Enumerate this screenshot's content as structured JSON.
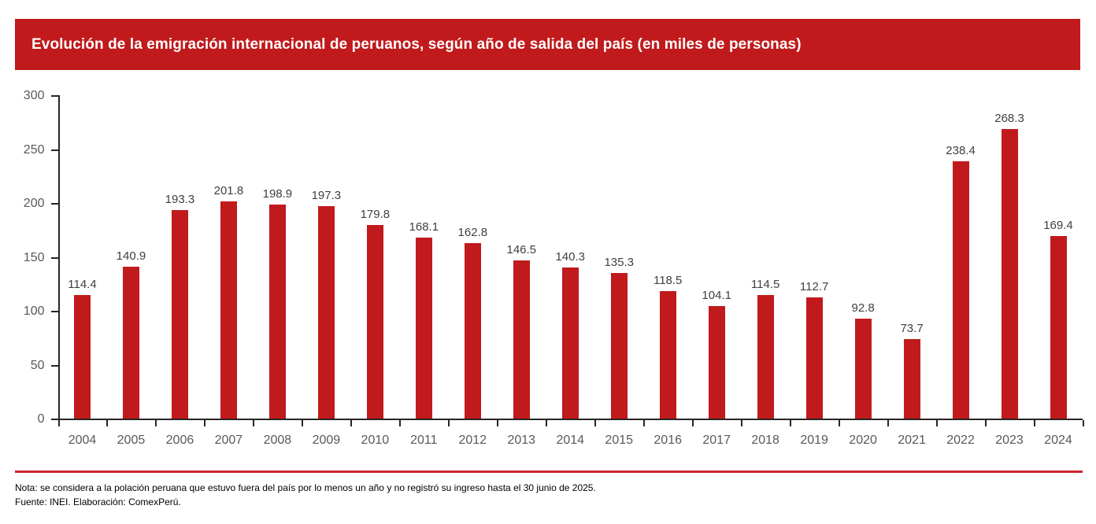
{
  "header": {
    "title": "Evolución de la emigración internacional de peruanos, según año de salida del país (en miles de personas)"
  },
  "chart_data": {
    "type": "bar",
    "title": "Evolución de la emigración internacional de peruanos, según año de salida del país (en miles de personas)",
    "categories": [
      "2004",
      "2005",
      "2006",
      "2007",
      "2008",
      "2009",
      "2010",
      "2011",
      "2012",
      "2013",
      "2014",
      "2015",
      "2016",
      "2017",
      "2018",
      "2019",
      "2020",
      "2021",
      "2022",
      "2023",
      "2024"
    ],
    "values": [
      114.4,
      140.9,
      193.3,
      201.8,
      198.9,
      197.3,
      179.8,
      168.1,
      162.8,
      146.5,
      140.3,
      135.3,
      118.5,
      104.1,
      114.5,
      112.7,
      92.8,
      73.7,
      238.4,
      268.3,
      169.4
    ],
    "xlabel": "",
    "ylabel": "",
    "ylim": [
      0,
      300
    ],
    "yticks": [
      0,
      50,
      100,
      150,
      200,
      250,
      300
    ],
    "grid": false,
    "legend": false,
    "data_labels": true
  },
  "colors": {
    "header_bg": "#C11A1C",
    "header_text": "#FFFFFF",
    "bar": "#C11A1C",
    "divider": "#CB2630",
    "axis": "#262626",
    "tick_label": "#595959",
    "data_label": "#404040"
  },
  "footer": {
    "note": "Nota: se considera a la polación peruana que estuvo fuera del país por lo menos un año y no registró su ingreso hasta el 30 junio de 2025.",
    "source": "Fuente: INEI. Elaboración: ComexPerú."
  }
}
